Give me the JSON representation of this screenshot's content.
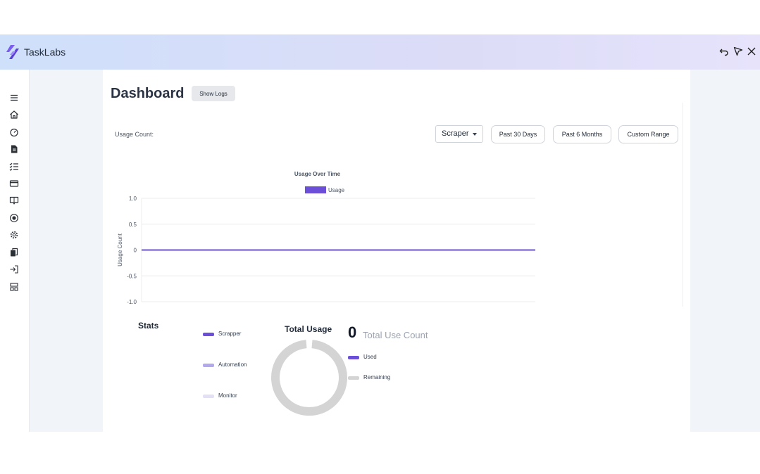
{
  "app": {
    "title": "TaskLabs"
  },
  "window_controls": {
    "icons": [
      "undo-icon",
      "pointer-icon",
      "close-icon"
    ]
  },
  "sidebar": {
    "icons": [
      "menu-icon",
      "home-icon",
      "speedometer-icon",
      "document-icon",
      "checklist-icon",
      "card-icon",
      "book-icon",
      "record-icon",
      "gear-icon",
      "copy-icon",
      "logout-icon",
      "server-icon"
    ]
  },
  "page": {
    "title": "Dashboard",
    "show_logs_label": "Show Logs"
  },
  "usage": {
    "label": "Usage Count:",
    "selector_value": "Scraper",
    "ranges": [
      "Past 30 Days",
      "Past 6 Months",
      "Custom Range"
    ]
  },
  "chart_data": {
    "type": "line",
    "title": "Usage Over Time",
    "ylabel": "Usage Count",
    "xlabel": "",
    "ylim": [
      -1.0,
      1.0
    ],
    "yticks": [
      "1.0",
      "0.5",
      "0",
      "-0.5",
      "-1.0"
    ],
    "grid": true,
    "legend_position": "top",
    "series": [
      {
        "name": "Usage",
        "color": "#6c4fd8",
        "values": [
          0,
          0
        ]
      }
    ]
  },
  "stats": {
    "title": "Stats",
    "legend": [
      {
        "label": "Scrapper",
        "color": "#6c4fd8"
      },
      {
        "label": "Automation",
        "color": "#b3a8ec"
      },
      {
        "label": "Monitor",
        "color": "#e3e0f6"
      }
    ]
  },
  "total_usage": {
    "title": "Total Usage",
    "count": "0",
    "count_label": "Total Use Count",
    "legend": [
      {
        "label": "Used",
        "color": "#6c4fd8"
      },
      {
        "label": "Remaining",
        "color": "#d4d4d4"
      }
    ],
    "used_fraction": 0
  }
}
